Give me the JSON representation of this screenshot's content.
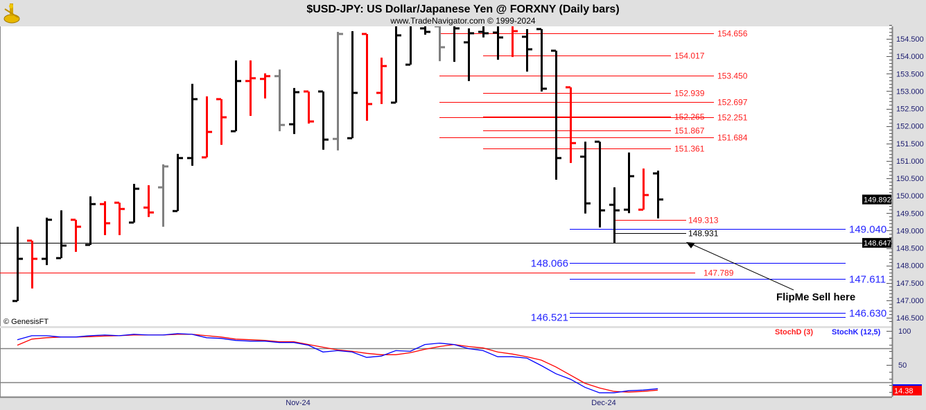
{
  "header": {
    "title": "$USD-JPY:  US Dollar/Japanese Yen @ FORXNY  (Daily bars)",
    "subtitle": "www.TradeNavigator.com © 1999-2024",
    "logo_icon": "sextant-icon"
  },
  "copyright": "© GenesisFT",
  "annotation": {
    "text": "FlipMe Sell here"
  },
  "chart_data": [
    {
      "type": "ohlc",
      "title": "$USD-JPY:  US Dollar/Japanese Yen @ FORXNY  (Daily bars)",
      "ylim": [
        146.4,
        155.0
      ],
      "y_ticks": [
        "146.500",
        "147.000",
        "147.500",
        "148.000",
        "148.500",
        "149.000",
        "149.500",
        "150.000",
        "150.500",
        "151.000",
        "151.500",
        "152.000",
        "152.500",
        "153.000",
        "153.500",
        "154.000",
        "154.500"
      ],
      "x_ticks": [
        "Nov-24",
        "Dec-24"
      ],
      "bar_colors": {
        "k": "#000000",
        "r": "#ff0000",
        "g": "#808080"
      },
      "bars": [
        {
          "o": 146.98,
          "h": 149.11,
          "l": 146.98,
          "c": 148.19,
          "col": "k"
        },
        {
          "o": 148.71,
          "h": 148.71,
          "l": 147.34,
          "c": 148.19,
          "col": "r"
        },
        {
          "o": 148.19,
          "h": 149.37,
          "l": 148.01,
          "c": 149.31,
          "col": "k"
        },
        {
          "o": 148.21,
          "h": 149.58,
          "l": 148.21,
          "c": 148.57,
          "col": "k"
        },
        {
          "o": 149.31,
          "h": 149.31,
          "l": 148.39,
          "c": 149.11,
          "col": "r"
        },
        {
          "o": 148.59,
          "h": 149.98,
          "l": 148.59,
          "c": 149.76,
          "col": "k"
        },
        {
          "o": 149.76,
          "h": 149.84,
          "l": 148.87,
          "c": 149.21,
          "col": "r"
        },
        {
          "o": 149.8,
          "h": 149.8,
          "l": 148.87,
          "c": 149.62,
          "col": "r"
        },
        {
          "o": 149.23,
          "h": 150.34,
          "l": 149.23,
          "c": 150.2,
          "col": "k"
        },
        {
          "o": 149.66,
          "h": 150.3,
          "l": 149.39,
          "c": 149.52,
          "col": "r"
        },
        {
          "o": 150.24,
          "h": 150.9,
          "l": 149.11,
          "c": 150.84,
          "col": "g"
        },
        {
          "o": 149.56,
          "h": 151.2,
          "l": 149.56,
          "c": 151.08,
          "col": "k"
        },
        {
          "o": 151.08,
          "h": 153.21,
          "l": 150.86,
          "c": 152.77,
          "col": "k"
        },
        {
          "o": 151.1,
          "h": 152.85,
          "l": 151.1,
          "c": 151.83,
          "col": "r"
        },
        {
          "o": 152.77,
          "h": 152.77,
          "l": 151.46,
          "c": 152.25,
          "col": "r"
        },
        {
          "o": 151.85,
          "h": 153.88,
          "l": 151.85,
          "c": 153.29,
          "col": "k"
        },
        {
          "o": 153.29,
          "h": 153.88,
          "l": 152.29,
          "c": 153.37,
          "col": "r"
        },
        {
          "o": 153.35,
          "h": 153.51,
          "l": 152.79,
          "c": 153.43,
          "col": "r"
        },
        {
          "o": 153.43,
          "h": 153.62,
          "l": 151.85,
          "c": 152.03,
          "col": "g"
        },
        {
          "o": 152.05,
          "h": 153.09,
          "l": 151.77,
          "c": 152.97,
          "col": "k"
        },
        {
          "o": 152.99,
          "h": 152.99,
          "l": 152.07,
          "c": 152.13,
          "col": "r"
        },
        {
          "o": 152.99,
          "h": 152.99,
          "l": 151.32,
          "c": 151.61,
          "col": "k"
        },
        {
          "o": 151.63,
          "h": 154.7,
          "l": 151.3,
          "c": 154.64,
          "col": "g"
        },
        {
          "o": 151.65,
          "h": 154.72,
          "l": 151.65,
          "c": 152.95,
          "col": "k"
        },
        {
          "o": 154.64,
          "h": 154.64,
          "l": 152.15,
          "c": 152.63,
          "col": "r"
        },
        {
          "o": 152.95,
          "h": 153.96,
          "l": 152.63,
          "c": 153.72,
          "col": "r"
        },
        {
          "o": 152.67,
          "h": 154.9,
          "l": 152.67,
          "c": 154.6,
          "col": "k"
        },
        {
          "o": 153.76,
          "h": 155.0,
          "l": 153.76,
          "c": 154.95,
          "col": "k"
        },
        {
          "o": 154.8,
          "h": 155.0,
          "l": 154.62,
          "c": 154.7,
          "col": "k"
        },
        {
          "o": 154.86,
          "h": 154.86,
          "l": 153.86,
          "c": 154.26,
          "col": "g"
        },
        {
          "o": 154.9,
          "h": 154.9,
          "l": 153.84,
          "c": 154.8,
          "col": "k"
        },
        {
          "o": 154.4,
          "h": 154.8,
          "l": 153.29,
          "c": 154.66,
          "col": "k"
        },
        {
          "o": 154.7,
          "h": 154.86,
          "l": 154.54,
          "c": 154.66,
          "col": "k"
        },
        {
          "o": 154.68,
          "h": 154.86,
          "l": 153.9,
          "c": 154.54,
          "col": "k"
        },
        {
          "o": 154.9,
          "h": 154.9,
          "l": 153.98,
          "c": 154.72,
          "col": "r"
        },
        {
          "o": 154.56,
          "h": 154.78,
          "l": 153.56,
          "c": 154.2,
          "col": "k"
        },
        {
          "o": 154.78,
          "h": 154.78,
          "l": 152.99,
          "c": 153.07,
          "col": "k"
        },
        {
          "o": 154.16,
          "h": 154.16,
          "l": 150.46,
          "c": 151.08,
          "col": "k"
        },
        {
          "o": 153.11,
          "h": 153.11,
          "l": 150.94,
          "c": 151.51,
          "col": "r"
        },
        {
          "o": 151.12,
          "h": 151.55,
          "l": 149.49,
          "c": 149.78,
          "col": "k"
        },
        {
          "o": 151.55,
          "h": 151.55,
          "l": 149.09,
          "c": 149.58,
          "col": "k"
        },
        {
          "o": 149.74,
          "h": 150.24,
          "l": 148.647,
          "c": 149.58,
          "col": "k"
        },
        {
          "o": 149.6,
          "h": 151.24,
          "l": 149.5,
          "c": 150.56,
          "col": "k"
        },
        {
          "o": 149.6,
          "h": 150.78,
          "l": 149.6,
          "c": 150.02,
          "col": "r"
        },
        {
          "o": 150.64,
          "h": 150.72,
          "l": 149.35,
          "c": 149.892,
          "col": "k"
        }
      ],
      "levels": [
        {
          "value": 154.656,
          "label": "154.656",
          "color": "red"
        },
        {
          "value": 154.017,
          "label": "154.017",
          "color": "red"
        },
        {
          "value": 153.45,
          "label": "153.450",
          "color": "red"
        },
        {
          "value": 152.939,
          "label": "152.939",
          "color": "red"
        },
        {
          "value": 152.697,
          "label": "152.697",
          "color": "red"
        },
        {
          "value": 152.265,
          "label": "152.265",
          "color": "red"
        },
        {
          "value": 152.251,
          "label": "152.251",
          "color": "red"
        },
        {
          "value": 151.867,
          "label": "151.867",
          "color": "red"
        },
        {
          "value": 151.684,
          "label": "151.684",
          "color": "red"
        },
        {
          "value": 151.361,
          "label": "151.361",
          "color": "red"
        },
        {
          "value": 149.313,
          "label": "149.313",
          "color": "red"
        },
        {
          "value": 149.04,
          "label": "149.040",
          "color": "blue"
        },
        {
          "value": 148.931,
          "label": "148.931",
          "color": "black"
        },
        {
          "value": 148.647,
          "label": "148.647",
          "color": "black"
        },
        {
          "value": 148.066,
          "label": "148.066",
          "color": "blue"
        },
        {
          "value": 147.789,
          "label": "147.789",
          "color": "red"
        },
        {
          "value": 147.611,
          "label": "147.611",
          "color": "blue"
        },
        {
          "value": 146.63,
          "label": "146.630",
          "color": "blue"
        },
        {
          "value": 146.521,
          "label": "146.521",
          "color": "blue"
        }
      ],
      "last_price": "149.892",
      "marked_price": "148.647"
    },
    {
      "type": "line",
      "ylim": [
        0,
        100
      ],
      "y_ticks": [
        "100",
        "50"
      ],
      "reference_lines": [
        75,
        25
      ],
      "series": [
        {
          "name": "StochD (3)",
          "color": "#ff0000",
          "values": [
            79,
            88,
            90,
            91,
            91,
            91.5,
            92.5,
            93,
            94,
            94,
            94,
            95,
            95,
            93,
            91,
            88,
            87,
            86,
            84,
            84,
            80,
            76,
            72,
            70,
            67,
            65,
            65,
            68,
            73,
            77,
            80,
            77,
            75,
            69,
            66,
            62,
            57,
            47,
            35,
            23,
            16,
            11,
            10,
            11,
            13
          ]
        },
        {
          "name": "StochK (12,5)",
          "color": "#0000ff",
          "values": [
            87,
            93,
            93,
            91,
            91,
            93,
            94,
            93,
            95,
            94,
            94,
            96,
            95,
            90,
            89,
            86,
            85,
            85,
            83,
            83,
            79,
            69,
            71,
            69,
            61,
            63,
            71,
            70,
            80,
            82,
            80,
            74,
            71,
            62,
            62,
            60,
            49,
            37,
            29,
            17,
            9,
            9,
            12,
            13,
            15
          ]
        }
      ],
      "last_value": "14.38"
    }
  ]
}
